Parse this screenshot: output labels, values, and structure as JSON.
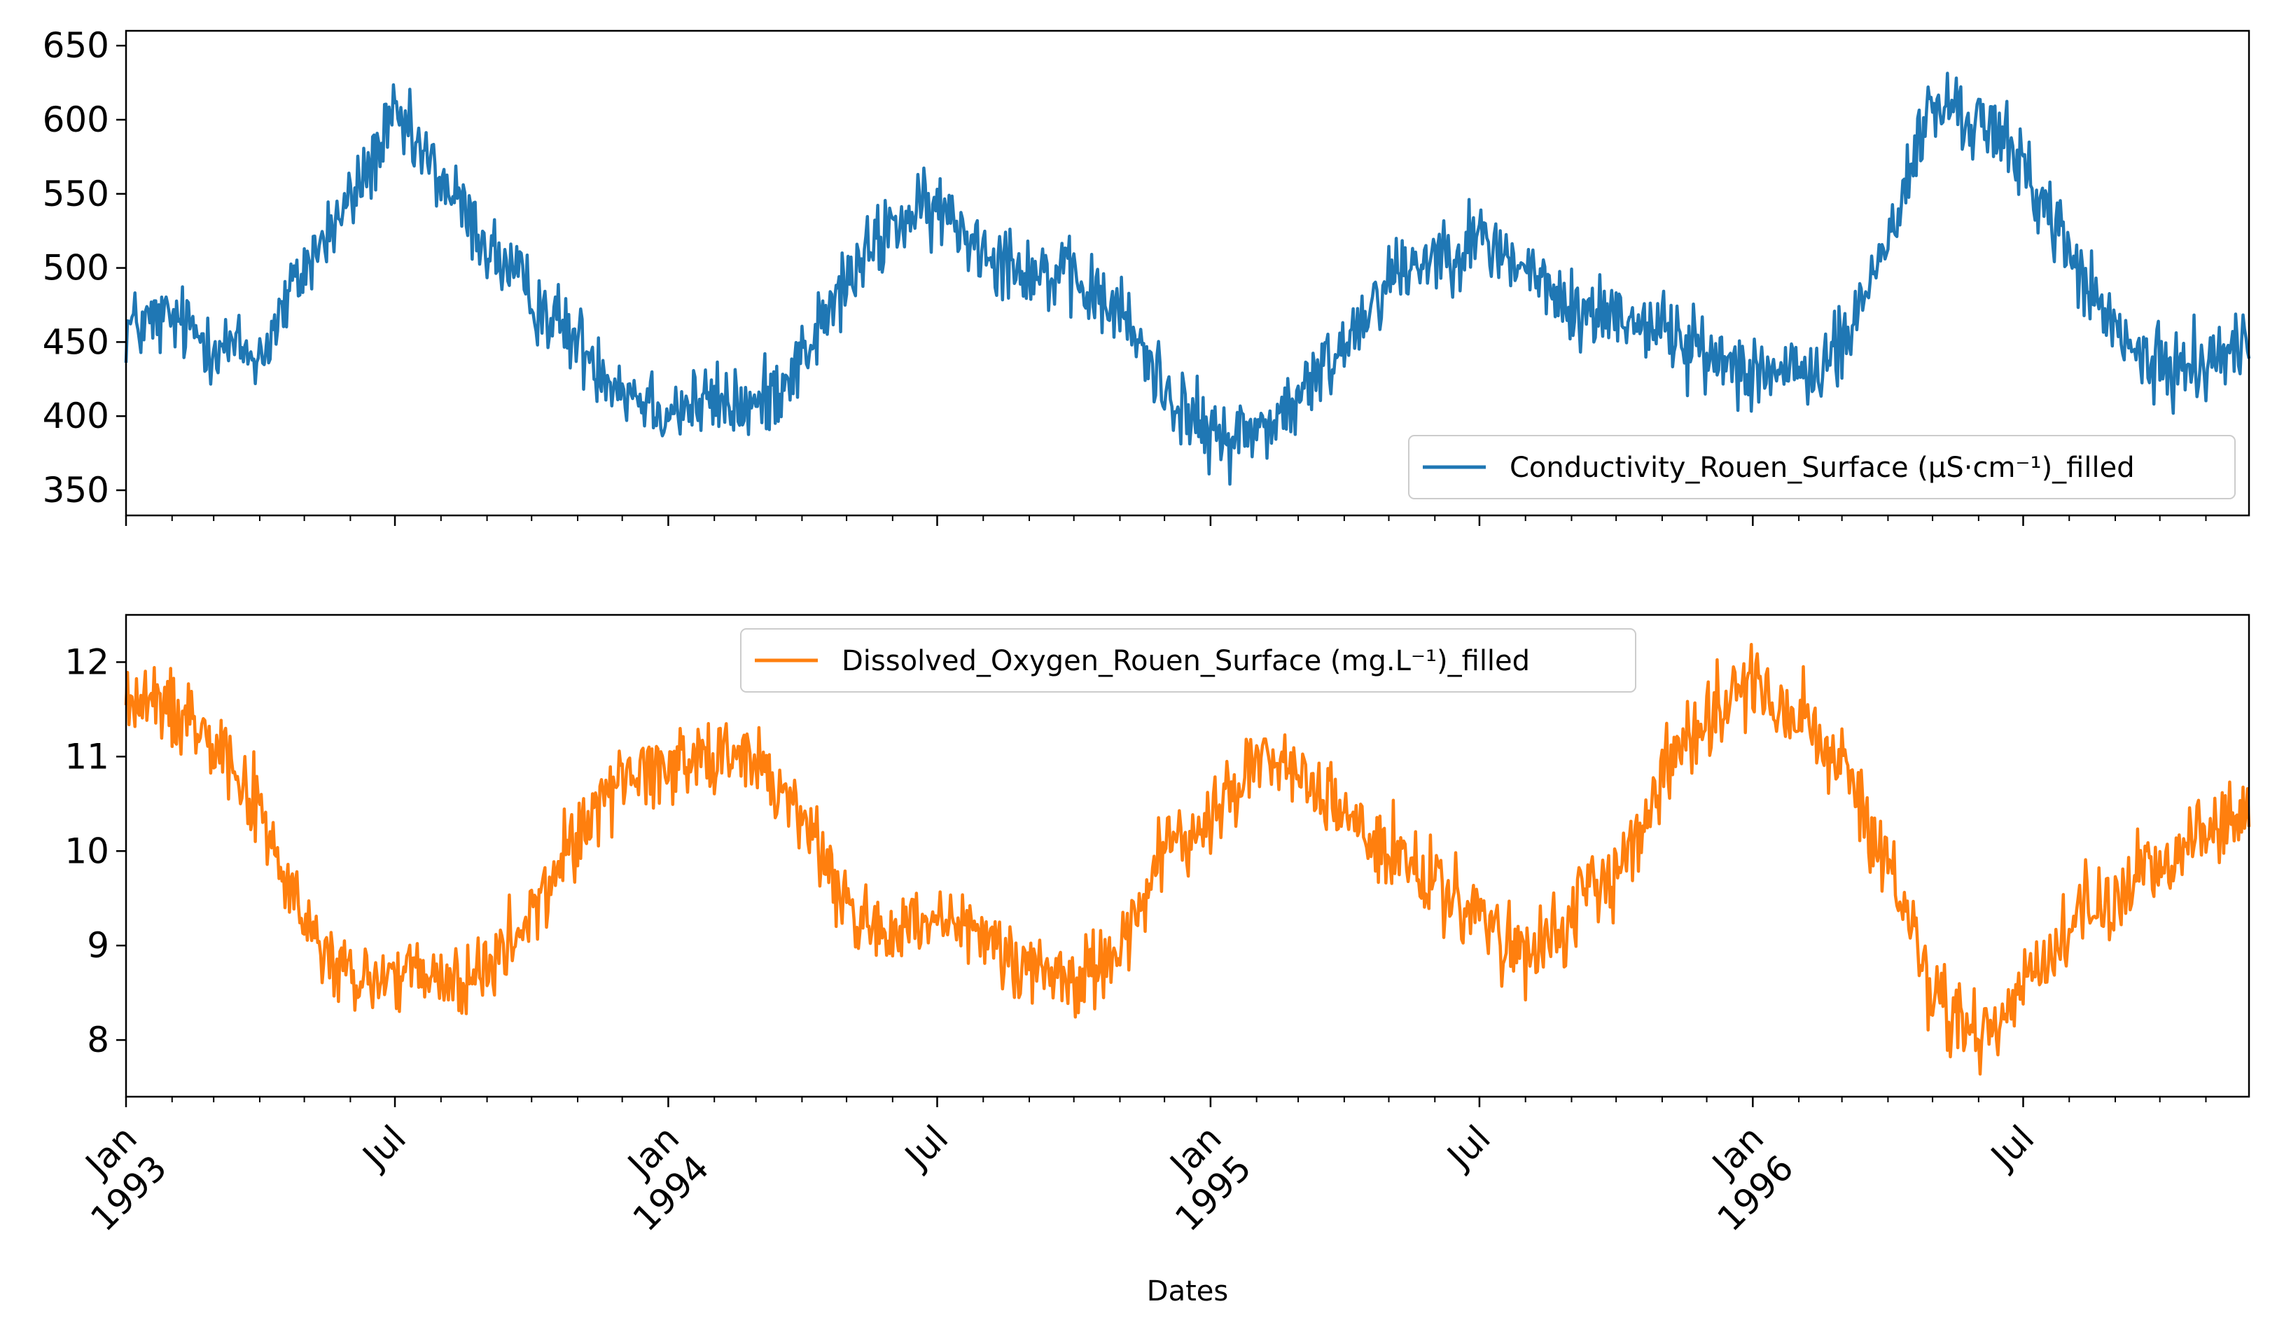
{
  "chart_data": {
    "type": "line",
    "shared_x": {
      "label": "Dates",
      "range": [
        "1993-01-01",
        "1996-11-30"
      ],
      "major_ticks": [
        {
          "date": "1993-01-01",
          "line1": "Jan",
          "line2": "1993"
        },
        {
          "date": "1993-07-01",
          "line1": "Jul",
          "line2": ""
        },
        {
          "date": "1994-01-01",
          "line1": "Jan",
          "line2": "1994"
        },
        {
          "date": "1994-07-01",
          "line1": "Jul",
          "line2": ""
        },
        {
          "date": "1995-01-01",
          "line1": "Jan",
          "line2": "1995"
        },
        {
          "date": "1995-07-01",
          "line1": "Jul",
          "line2": ""
        },
        {
          "date": "1996-01-01",
          "line1": "Jan",
          "line2": "1996"
        },
        {
          "date": "1996-07-01",
          "line1": "Jul",
          "line2": ""
        }
      ],
      "minor_ticks": "monthly"
    },
    "panels": [
      {
        "series": {
          "name": "Conductivity_Rouen_Surface (µS·cm⁻¹)_filled",
          "color": "#1f77b4",
          "noise": 26,
          "anchors": [
            [
              "1993-01-01",
              460
            ],
            [
              "1993-02-01",
              465
            ],
            [
              "1993-03-01",
              450
            ],
            [
              "1993-04-01",
              440
            ],
            [
              "1993-05-01",
              500
            ],
            [
              "1993-06-01",
              545
            ],
            [
              "1993-07-01",
              600
            ],
            [
              "1993-08-01",
              560
            ],
            [
              "1993-09-01",
              515
            ],
            [
              "1993-10-01",
              480
            ],
            [
              "1993-11-01",
              450
            ],
            [
              "1993-12-01",
              420
            ],
            [
              "1994-01-01",
              405
            ],
            [
              "1994-02-01",
              410
            ],
            [
              "1994-03-01",
              405
            ],
            [
              "1994-04-01",
              440
            ],
            [
              "1994-05-01",
              490
            ],
            [
              "1994-06-01",
              530
            ],
            [
              "1994-07-01",
              540
            ],
            [
              "1994-08-01",
              515
            ],
            [
              "1994-09-01",
              500
            ],
            [
              "1994-10-01",
              490
            ],
            [
              "1994-11-01",
              470
            ],
            [
              "1994-12-01",
              420
            ],
            [
              "1995-01-01",
              385
            ],
            [
              "1995-02-01",
              390
            ],
            [
              "1995-03-01",
              410
            ],
            [
              "1995-04-01",
              450
            ],
            [
              "1995-05-01",
              495
            ],
            [
              "1995-06-01",
              510
            ],
            [
              "1995-07-01",
              520
            ],
            [
              "1995-08-01",
              500
            ],
            [
              "1995-09-01",
              470
            ],
            [
              "1995-10-01",
              470
            ],
            [
              "1995-11-01",
              460
            ],
            [
              "1995-12-01",
              440
            ],
            [
              "1996-01-01",
              435
            ],
            [
              "1996-02-01",
              425
            ],
            [
              "1996-03-01",
              445
            ],
            [
              "1996-04-01",
              520
            ],
            [
              "1996-05-01",
              610
            ],
            [
              "1996-06-01",
              600
            ],
            [
              "1996-07-01",
              570
            ],
            [
              "1996-08-01",
              510
            ],
            [
              "1996-09-01",
              455
            ],
            [
              "1996-10-01",
              430
            ],
            [
              "1996-11-01",
              440
            ],
            [
              "1996-11-30",
              445
            ]
          ]
        },
        "y_ticks": [
          350,
          400,
          450,
          500,
          550,
          600,
          650
        ],
        "ylim": [
          333,
          660
        ],
        "legend": "lower right"
      },
      {
        "series": {
          "name": "Dissolved_Oxygen_Rouen_Surface (mg.L⁻¹)_filled",
          "color": "#ff7f0e",
          "noise": 0.42,
          "anchors": [
            [
              "1993-01-01",
              11.6
            ],
            [
              "1993-02-01",
              11.5
            ],
            [
              "1993-03-01",
              11.3
            ],
            [
              "1993-04-01",
              10.4
            ],
            [
              "1993-05-01",
              9.2
            ],
            [
              "1993-06-01",
              8.6
            ],
            [
              "1993-07-01",
              8.7
            ],
            [
              "1993-08-01",
              8.6
            ],
            [
              "1993-09-01",
              8.7
            ],
            [
              "1993-10-01",
              9.3
            ],
            [
              "1993-11-01",
              10.2
            ],
            [
              "1993-12-01",
              10.8
            ],
            [
              "1994-01-01",
              10.9
            ],
            [
              "1994-02-01",
              11.1
            ],
            [
              "1994-03-01",
              10.9
            ],
            [
              "1994-04-01",
              10.4
            ],
            [
              "1994-05-01",
              9.4
            ],
            [
              "1994-06-01",
              9.1
            ],
            [
              "1994-07-01",
              9.2
            ],
            [
              "1994-08-01",
              9.1
            ],
            [
              "1994-09-01",
              8.8
            ],
            [
              "1994-10-01",
              8.6
            ],
            [
              "1994-11-01",
              9.0
            ],
            [
              "1994-12-01",
              10.0
            ],
            [
              "1995-01-01",
              10.3
            ],
            [
              "1995-02-01",
              11.0
            ],
            [
              "1995-03-01",
              10.8
            ],
            [
              "1995-04-01",
              10.4
            ],
            [
              "1995-05-01",
              10.0
            ],
            [
              "1995-06-01",
              9.6
            ],
            [
              "1995-07-01",
              9.3
            ],
            [
              "1995-08-01",
              8.8
            ],
            [
              "1995-09-01",
              9.3
            ],
            [
              "1995-10-01",
              9.8
            ],
            [
              "1995-11-01",
              10.8
            ],
            [
              "1995-12-01",
              11.5
            ],
            [
              "1996-01-01",
              11.8
            ],
            [
              "1996-02-01",
              11.4
            ],
            [
              "1996-03-01",
              10.9
            ],
            [
              "1996-04-01",
              9.8
            ],
            [
              "1996-05-01",
              8.5
            ],
            [
              "1996-06-01",
              8.0
            ],
            [
              "1996-07-01",
              8.6
            ],
            [
              "1996-08-01",
              9.2
            ],
            [
              "1996-09-01",
              9.5
            ],
            [
              "1996-10-01",
              9.9
            ],
            [
              "1996-11-01",
              10.2
            ],
            [
              "1996-11-30",
              10.4
            ]
          ]
        },
        "y_ticks": [
          8,
          9,
          10,
          11,
          12
        ],
        "ylim": [
          7.4,
          12.5
        ],
        "legend": "top center"
      }
    ]
  }
}
